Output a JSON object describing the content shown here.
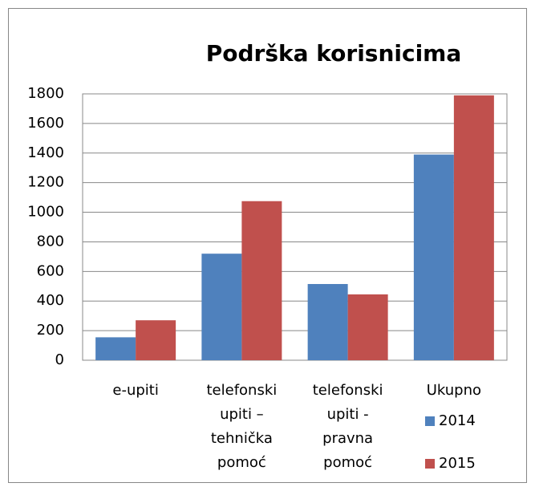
{
  "chart_data": {
    "type": "bar",
    "title": "Podrška korisnicima",
    "categories": [
      "e-upiti",
      "telefonski upiti – tehnička pomoć",
      "telefonski upiti - pravna pomoć",
      "Ukupno"
    ],
    "series": [
      {
        "name": "2014",
        "color": "#4f81bd",
        "values": [
          155,
          720,
          515,
          1390
        ]
      },
      {
        "name": "2015",
        "color": "#c0504d",
        "values": [
          270,
          1075,
          445,
          1790
        ]
      }
    ],
    "ylim": [
      0,
      1800
    ],
    "yticks": [
      0,
      200,
      400,
      600,
      800,
      1000,
      1200,
      1400,
      1600,
      1800
    ],
    "grid": true,
    "legend": "right"
  }
}
